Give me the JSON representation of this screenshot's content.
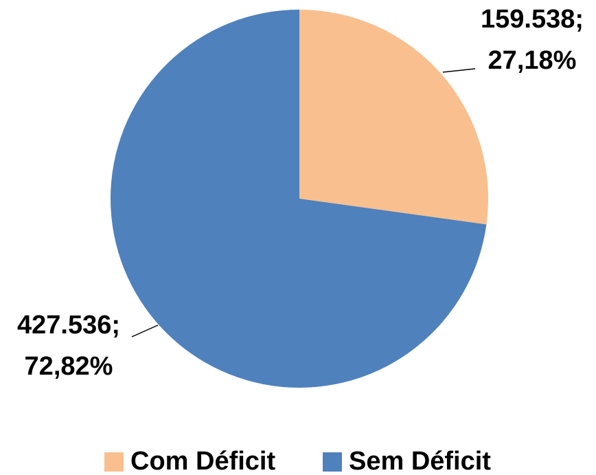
{
  "chart_data": {
    "type": "pie",
    "categories": [
      "Com Déficit",
      "Sem Déficit"
    ],
    "values": [
      159538,
      427536
    ],
    "value_labels": [
      "159.538;",
      "427.536;"
    ],
    "percentages": [
      27.18,
      72.82
    ],
    "percentage_labels": [
      "27,18%",
      "72,82%"
    ],
    "colors": [
      "#F9BF8F",
      "#4F81BD"
    ],
    "legend": "bottom"
  }
}
